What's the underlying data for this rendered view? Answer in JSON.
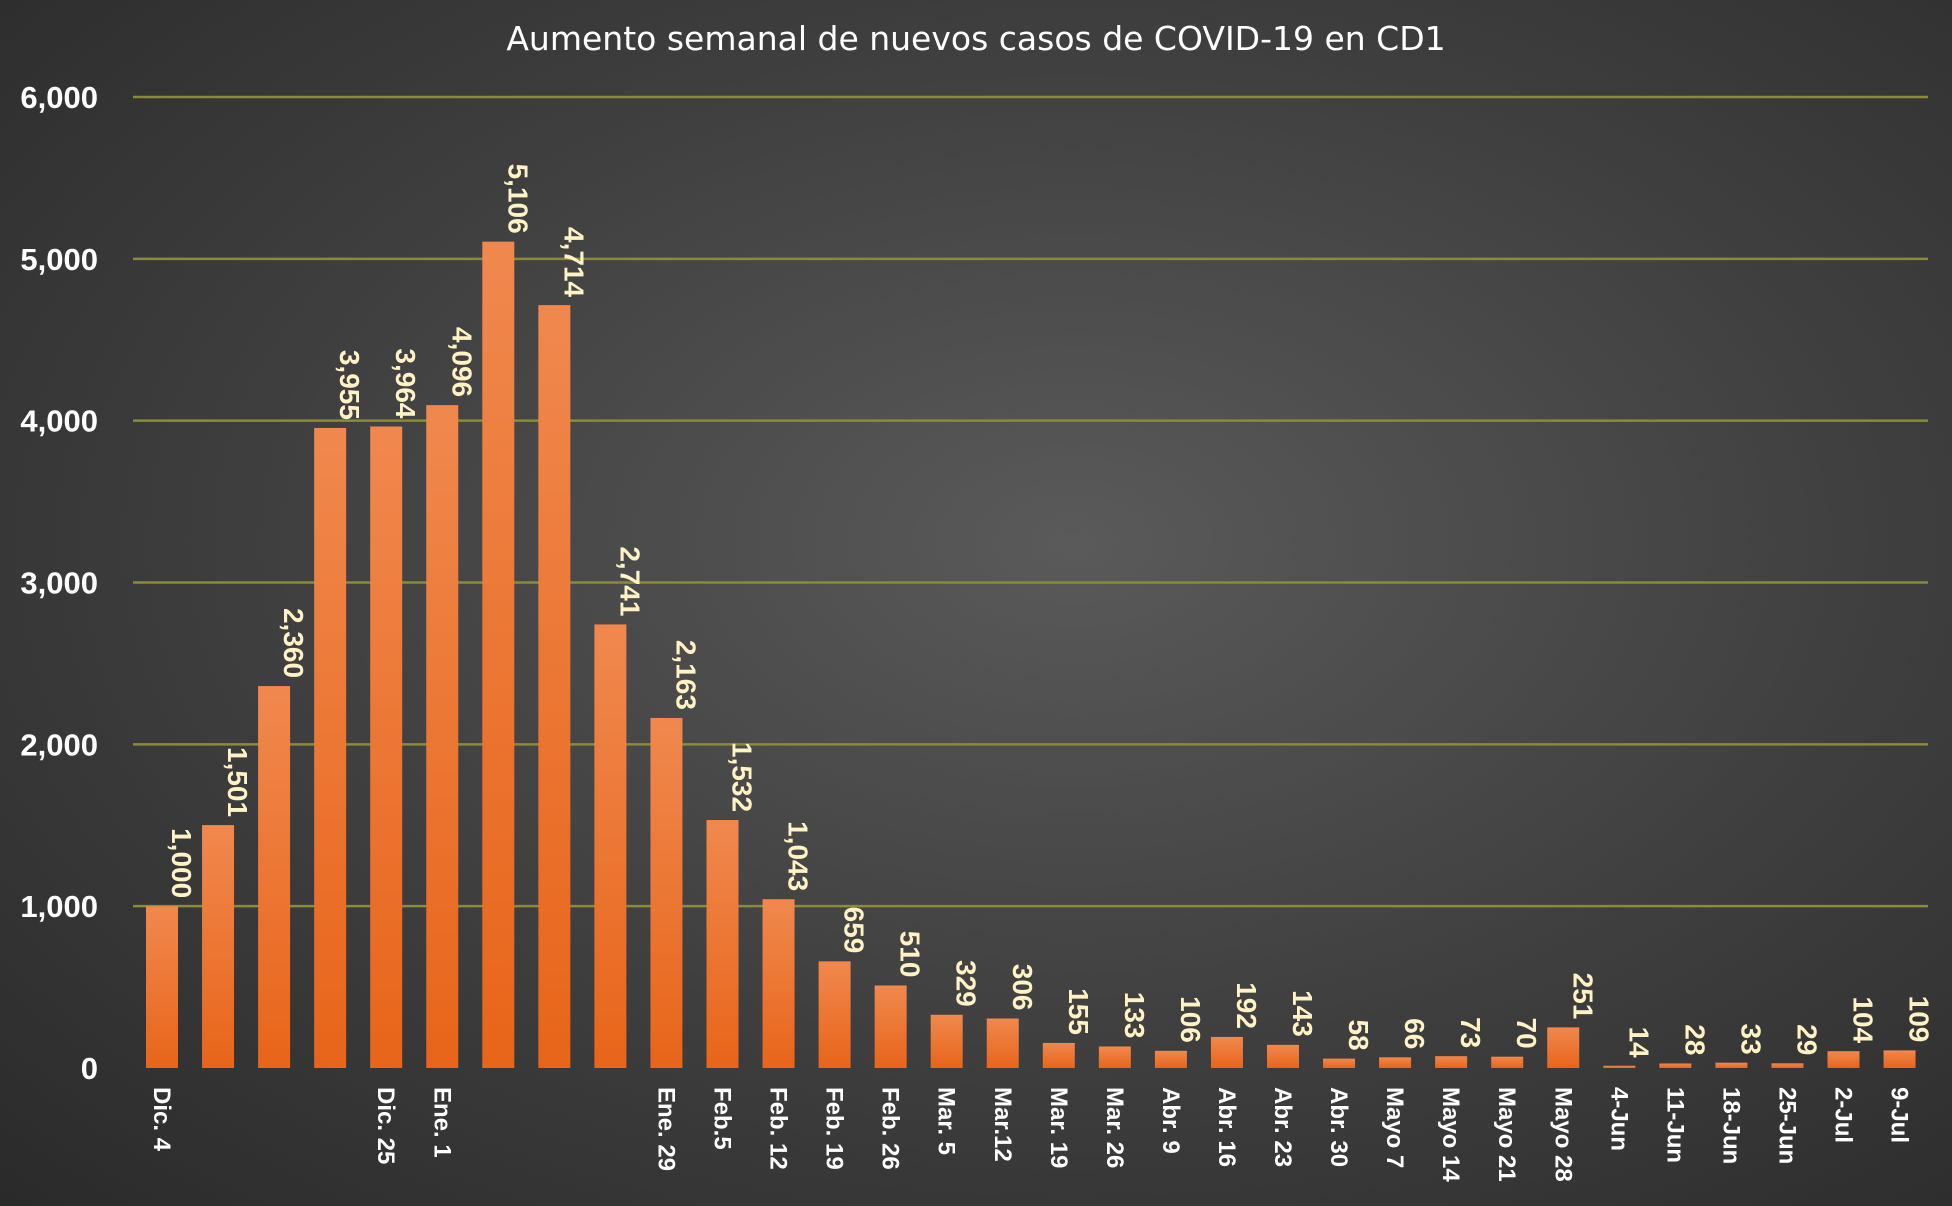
{
  "chart_data": {
    "type": "bar",
    "title": "Aumento semanal de nuevos casos de COVID-19 en CD1",
    "xlabel": "",
    "ylabel": "",
    "ylim": [
      0,
      6000
    ],
    "yticks": [
      "0",
      "1,000",
      "2,000",
      "3,000",
      "4,000",
      "5,000",
      "6,000"
    ],
    "grid": true,
    "legend": "none",
    "categories": [
      "Dic. 4",
      "",
      "",
      "",
      "Dic. 25",
      "Ene. 1",
      "",
      "",
      "",
      "Ene. 29",
      "Feb.5",
      "Feb. 12",
      "Feb. 19",
      "Feb. 26",
      "Mar. 5",
      "Mar.12",
      "Mar. 19",
      "Mar. 26",
      "Abr. 9",
      "Abr. 16",
      "Abr. 23",
      "Abr. 30",
      "Mayo 7",
      "Mayo 14",
      "Mayo 21",
      "Mayo 28",
      "4-Jun",
      "11-Jun",
      "18-Jun",
      "25-Jun",
      "2-Jul",
      "9-Jul"
    ],
    "values": [
      1000,
      1501,
      2360,
      3955,
      3964,
      4096,
      5106,
      4714,
      2741,
      2163,
      1532,
      1043,
      659,
      510,
      329,
      306,
      155,
      133,
      106,
      192,
      143,
      58,
      66,
      73,
      70,
      251,
      14,
      28,
      33,
      29,
      104,
      109
    ],
    "data_labels": [
      "1,000",
      "1,501",
      "2,360",
      "3,955",
      "3,964",
      "4,096",
      "5,106",
      "4,714",
      "2,741",
      "2,163",
      "1,532",
      "1,043",
      "659",
      "510",
      "329",
      "306",
      "155",
      "133",
      "106",
      "192",
      "143",
      "58",
      "66",
      "73",
      "70",
      "251",
      "14",
      "28",
      "33",
      "29",
      "104",
      "109"
    ],
    "colors": {
      "bar_top": "#f0884e",
      "bar_bottom": "#e8651a",
      "grid": "#8a8a3c",
      "title": "#ffffff",
      "tick_label": "#ffffff",
      "data_label": "#fff2c4"
    }
  }
}
